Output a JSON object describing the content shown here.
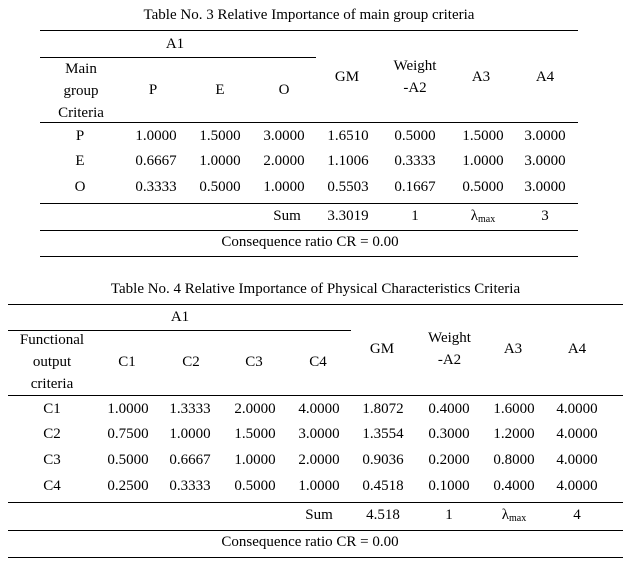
{
  "table3": {
    "caption": "Table No. 3 Relative Importance of main group criteria",
    "group_label": "A1",
    "row_header_lines": [
      "Main",
      "group",
      "Criteria"
    ],
    "subcols": [
      "P",
      "E",
      "O"
    ],
    "gm": "GM",
    "weight_lines": [
      "Weight",
      "-A2"
    ],
    "a3": "A3",
    "a4": "A4",
    "rows": [
      {
        "label": "P",
        "v": [
          "1.0000",
          "1.5000",
          "3.0000"
        ],
        "gm": "1.6510",
        "w": "0.5000",
        "a3": "1.5000",
        "a4": "3.0000"
      },
      {
        "label": "E",
        "v": [
          "0.6667",
          "1.0000",
          "2.0000"
        ],
        "gm": "1.1006",
        "w": "0.3333",
        "a3": "1.0000",
        "a4": "3.0000"
      },
      {
        "label": "O",
        "v": [
          "0.3333",
          "0.5000",
          "1.0000"
        ],
        "gm": "0.5503",
        "w": "0.1667",
        "a3": "0.5000",
        "a4": "3.0000"
      }
    ],
    "sum_label": "Sum",
    "sum_gm": "3.3019",
    "sum_w": "1",
    "lambda": "λ",
    "lambda_sub": "max",
    "lambda_value": "3",
    "cr": "Consequence ratio CR = 0.00"
  },
  "table4": {
    "caption": "Table No. 4 Relative Importance of Physical Characteristics Criteria",
    "group_label": "A1",
    "row_header_lines": [
      "Functional",
      "output",
      "criteria"
    ],
    "subcols": [
      "C1",
      "C2",
      "C3",
      "C4"
    ],
    "gm": "GM",
    "weight_lines": [
      "Weight",
      "-A2"
    ],
    "a3": "A3",
    "a4": "A4",
    "rows": [
      {
        "label": "C1",
        "v": [
          "1.0000",
          "1.3333",
          "2.0000",
          "4.0000"
        ],
        "gm": "1.8072",
        "w": "0.4000",
        "a3": "1.6000",
        "a4": "4.0000"
      },
      {
        "label": "C2",
        "v": [
          "0.7500",
          "1.0000",
          "1.5000",
          "3.0000"
        ],
        "gm": "1.3554",
        "w": "0.3000",
        "a3": "1.2000",
        "a4": "4.0000"
      },
      {
        "label": "C3",
        "v": [
          "0.5000",
          "0.6667",
          "1.0000",
          "2.0000"
        ],
        "gm": "0.9036",
        "w": "0.2000",
        "a3": "0.8000",
        "a4": "4.0000"
      },
      {
        "label": "C4",
        "v": [
          "0.2500",
          "0.3333",
          "0.5000",
          "1.0000"
        ],
        "gm": "0.4518",
        "w": "0.1000",
        "a3": "0.4000",
        "a4": "4.0000"
      }
    ],
    "sum_label": "Sum",
    "sum_gm": "4.518",
    "sum_w": "1",
    "lambda": "λ",
    "lambda_sub": "max",
    "lambda_value": "4",
    "cr": "Consequence ratio CR = 0.00"
  }
}
